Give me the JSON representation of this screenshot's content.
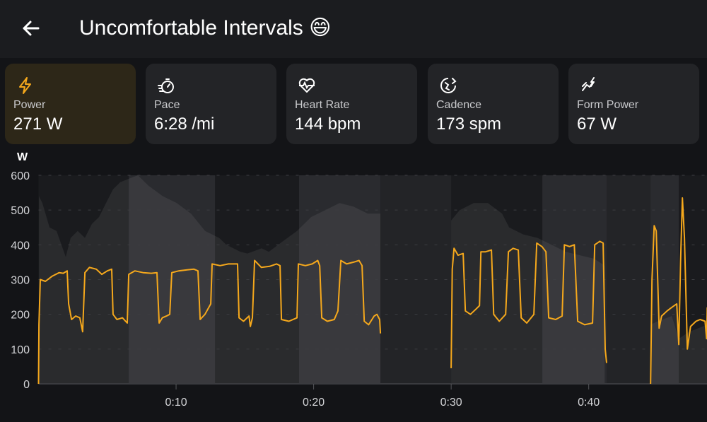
{
  "header": {
    "title": "Uncomfortable Intervals 😄",
    "back_icon": "arrow-left-icon"
  },
  "metrics": [
    {
      "label": "Power",
      "value": "271 W",
      "icon": "lightning-bolt-icon",
      "active": true
    },
    {
      "label": "Pace",
      "value": "6:28 /mi",
      "icon": "stopwatch-icon",
      "active": false
    },
    {
      "label": "Heart Rate",
      "value": "144 bpm",
      "icon": "heart-pulse-icon",
      "active": false
    },
    {
      "label": "Cadence",
      "value": "173 spm",
      "icon": "cadence-icon",
      "active": false
    },
    {
      "label": "Form Power",
      "value": "67 W",
      "icon": "form-power-icon",
      "active": false
    }
  ],
  "colors": {
    "accent": "#f5a81c",
    "active_card": "#2d2718",
    "card": "#232427"
  },
  "chart_data": {
    "type": "line",
    "ylabel": "W",
    "ylim": [
      0,
      600
    ],
    "yticks": [
      "0",
      "100",
      "200",
      "300",
      "400",
      "500",
      "600"
    ],
    "xlim_minutes": [
      0,
      48.6
    ],
    "xticks": [
      {
        "t": 10,
        "label": "0:10"
      },
      {
        "t": 20,
        "label": "0:20"
      },
      {
        "t": 30,
        "label": "0:30"
      },
      {
        "t": 40,
        "label": "0:40"
      }
    ],
    "grid": true,
    "lap_bands_minutes": [
      [
        6.56,
        12.83
      ],
      [
        18.94,
        24.86
      ],
      [
        36.63,
        46.55
      ]
    ],
    "gaps_minutes": [
      [
        24.86,
        30.0
      ],
      [
        41.3,
        44.5
      ]
    ],
    "series": [
      {
        "color": "#f5a81c",
        "segments": [
          [
            [
              0,
              0
            ],
            [
              0.03,
              170
            ],
            [
              0.13,
              300
            ],
            [
              0.5,
              295
            ],
            [
              1.0,
              310
            ],
            [
              1.5,
              320
            ],
            [
              1.8,
              318
            ],
            [
              2.08,
              325
            ],
            [
              2.19,
              230
            ],
            [
              2.4,
              185
            ],
            [
              2.7,
              195
            ],
            [
              3.0,
              190
            ],
            [
              3.21,
              150
            ],
            [
              3.37,
              320
            ],
            [
              3.7,
              335
            ],
            [
              4.2,
              330
            ],
            [
              4.6,
              315
            ],
            [
              5.0,
              325
            ],
            [
              5.32,
              330
            ],
            [
              5.42,
              200
            ],
            [
              5.7,
              185
            ],
            [
              6.1,
              190
            ],
            [
              6.45,
              175
            ],
            [
              6.56,
              315
            ],
            [
              7.0,
              325
            ],
            [
              7.6,
              320
            ],
            [
              8.2,
              318
            ],
            [
              8.61,
              320
            ],
            [
              8.77,
              175
            ],
            [
              9.0,
              190
            ],
            [
              9.3,
              195
            ],
            [
              9.54,
              200
            ],
            [
              9.69,
              320
            ],
            [
              10.2,
              325
            ],
            [
              10.8,
              328
            ],
            [
              11.3,
              330
            ],
            [
              11.59,
              325
            ],
            [
              11.75,
              185
            ],
            [
              12.1,
              200
            ],
            [
              12.52,
              230
            ],
            [
              12.62,
              345
            ],
            [
              13.2,
              340
            ],
            [
              13.8,
              345
            ],
            [
              14.47,
              345
            ],
            [
              14.58,
              190
            ],
            [
              14.9,
              180
            ],
            [
              15.3,
              195
            ],
            [
              15.4,
              165
            ],
            [
              15.55,
              190
            ],
            [
              15.71,
              355
            ],
            [
              16.2,
              335
            ],
            [
              16.8,
              338
            ],
            [
              17.3,
              345
            ],
            [
              17.56,
              340
            ],
            [
              17.66,
              185
            ],
            [
              18.2,
              180
            ],
            [
              18.79,
              190
            ],
            [
              18.89,
              345
            ],
            [
              19.4,
              340
            ],
            [
              19.9,
              345
            ],
            [
              20.3,
              355
            ],
            [
              20.44,
              340
            ],
            [
              20.59,
              190
            ],
            [
              21.0,
              180
            ],
            [
              21.5,
              185
            ],
            [
              21.77,
              210
            ],
            [
              21.98,
              355
            ],
            [
              22.4,
              345
            ],
            [
              22.9,
              350
            ],
            [
              23.3,
              355
            ],
            [
              23.52,
              340
            ],
            [
              23.68,
              180
            ],
            [
              24.0,
              170
            ],
            [
              24.4,
              195
            ],
            [
              24.6,
              200
            ],
            [
              24.8,
              185
            ],
            [
              24.86,
              145
            ]
          ],
          [
            [
              30.0,
              45
            ],
            [
              30.08,
              330
            ],
            [
              30.21,
              390
            ],
            [
              30.5,
              370
            ],
            [
              30.87,
              375
            ],
            [
              31.03,
              210
            ],
            [
              31.4,
              200
            ],
            [
              31.8,
              215
            ],
            [
              32.06,
              225
            ],
            [
              32.16,
              380
            ],
            [
              32.5,
              380
            ],
            [
              32.93,
              385
            ],
            [
              33.09,
              200
            ],
            [
              33.5,
              180
            ],
            [
              33.96,
              200
            ],
            [
              34.16,
              380
            ],
            [
              34.5,
              390
            ],
            [
              34.88,
              385
            ],
            [
              35.09,
              190
            ],
            [
              35.5,
              175
            ],
            [
              36.01,
              200
            ],
            [
              36.22,
              405
            ],
            [
              36.6,
              395
            ],
            [
              36.89,
              380
            ],
            [
              37.09,
              190
            ],
            [
              37.6,
              185
            ],
            [
              38.07,
              195
            ],
            [
              38.23,
              400
            ],
            [
              38.6,
              395
            ],
            [
              38.95,
              400
            ],
            [
              39.2,
              180
            ],
            [
              39.7,
              170
            ],
            [
              40.28,
              175
            ],
            [
              40.44,
              400
            ],
            [
              40.8,
              410
            ],
            [
              41.05,
              405
            ],
            [
              41.2,
              100
            ],
            [
              41.3,
              60
            ]
          ],
          [
            [
              44.5,
              0
            ],
            [
              44.6,
              300
            ],
            [
              44.76,
              455
            ],
            [
              44.91,
              440
            ],
            [
              45.12,
              160
            ],
            [
              45.3,
              195
            ],
            [
              45.7,
              210
            ],
            [
              46.04,
              220
            ],
            [
              46.4,
              230
            ],
            [
              46.55,
              113
            ],
            [
              46.68,
              350
            ],
            [
              46.81,
              535
            ],
            [
              46.96,
              420
            ],
            [
              47.17,
              100
            ],
            [
              47.4,
              165
            ],
            [
              47.8,
              180
            ],
            [
              48.1,
              185
            ],
            [
              48.46,
              180
            ],
            [
              48.57,
              130
            ],
            [
              48.62,
              220
            ]
          ]
        ]
      },
      {
        "color": "#3a3b3f",
        "role": "background-area",
        "segments": [
          [
            [
              0.03,
              540
            ],
            [
              0.28,
              520
            ],
            [
              0.8,
              450
            ],
            [
              1.31,
              440
            ],
            [
              1.98,
              365
            ],
            [
              2.34,
              420
            ],
            [
              2.85,
              440
            ],
            [
              3.37,
              420
            ],
            [
              3.88,
              460
            ],
            [
              4.4,
              480
            ],
            [
              4.91,
              520
            ],
            [
              5.42,
              560
            ],
            [
              5.94,
              580
            ],
            [
              6.56,
              590
            ],
            [
              7.22,
              600
            ],
            [
              8.0,
              570
            ],
            [
              9.03,
              540
            ],
            [
              10.05,
              520
            ],
            [
              11.08,
              490
            ],
            [
              12.11,
              440
            ],
            [
              13.13,
              420
            ],
            [
              13.65,
              400
            ],
            [
              14.68,
              380
            ],
            [
              15.19,
              375
            ],
            [
              16.22,
              390
            ],
            [
              16.74,
              380
            ],
            [
              17.76,
              410
            ],
            [
              18.79,
              440
            ],
            [
              19.82,
              480
            ],
            [
              20.85,
              500
            ],
            [
              21.88,
              520
            ],
            [
              22.9,
              510
            ],
            [
              23.93,
              490
            ],
            [
              24.86,
              490
            ]
          ],
          [
            [
              30.0,
              470
            ],
            [
              30.62,
              500
            ],
            [
              31.64,
              520
            ],
            [
              32.67,
              520
            ],
            [
              33.7,
              490
            ],
            [
              34.22,
              450
            ],
            [
              35.24,
              430
            ],
            [
              36.27,
              420
            ],
            [
              37.3,
              400
            ],
            [
              38.33,
              380
            ],
            [
              39.36,
              370
            ],
            [
              40.39,
              360
            ],
            [
              41.16,
              340
            ]
          ],
          [
            [
              44.5,
              170
            ],
            [
              45.01,
              180
            ],
            [
              46.04,
              195
            ],
            [
              46.55,
              130
            ],
            [
              47.32,
              150
            ],
            [
              48.62,
              170
            ]
          ]
        ]
      }
    ]
  }
}
